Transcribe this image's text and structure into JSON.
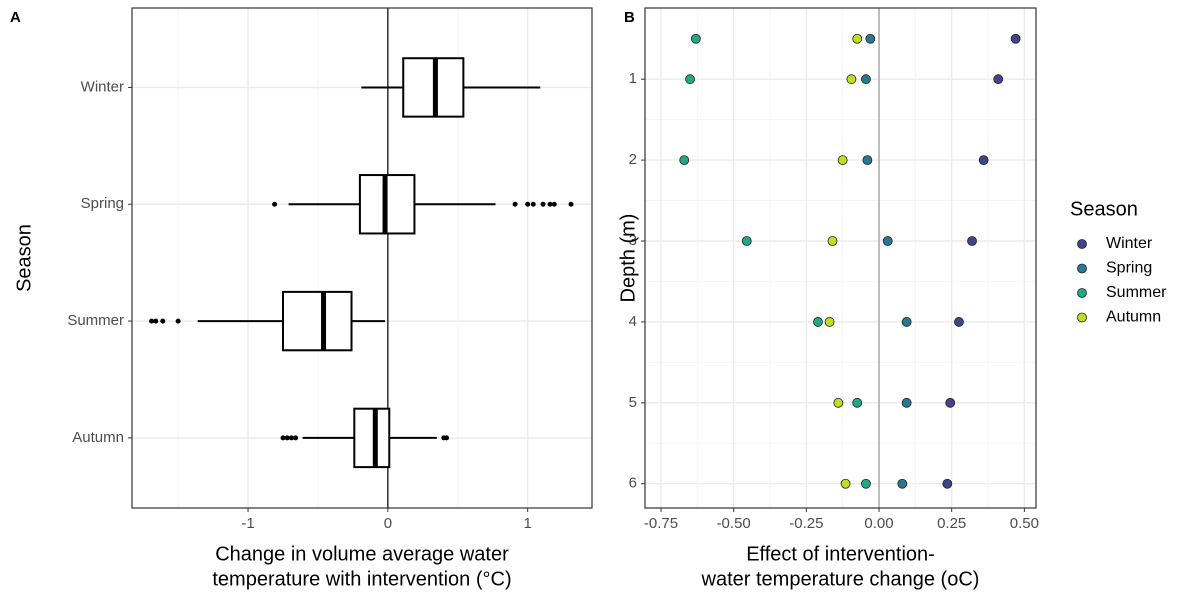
{
  "chart_data": [
    {
      "type": "boxplot",
      "panel_label": "A",
      "y_label": "Season",
      "x_label": [
        "Change in volume average water",
        "temperature with intervention (°C)"
      ],
      "categories": [
        "Winter",
        "Spring",
        "Summer",
        "Autumn"
      ],
      "boxes": [
        {
          "whislo": -0.19,
          "q1": 0.11,
          "med": 0.34,
          "q3": 0.54,
          "whishi": 1.09,
          "fliers": []
        },
        {
          "whislo": -0.71,
          "q1": -0.2,
          "med": -0.02,
          "q3": 0.19,
          "whishi": 0.77,
          "fliers": [
            -0.81,
            0.91,
            1.0,
            1.04,
            1.11,
            1.16,
            1.19,
            1.31
          ]
        },
        {
          "whislo": -1.36,
          "q1": -0.75,
          "med": -0.46,
          "q3": -0.26,
          "whishi": -0.02,
          "fliers": [
            -1.69,
            -1.66,
            -1.61,
            -1.5
          ]
        },
        {
          "whislo": -0.61,
          "q1": -0.24,
          "med": -0.09,
          "q3": 0.01,
          "whishi": 0.35,
          "fliers": [
            -0.75,
            -0.72,
            -0.69,
            -0.66,
            0.4,
            0.42
          ]
        }
      ],
      "color": "#000000",
      "xlim": [
        -1.83,
        1.46
      ],
      "xticks": [
        -1,
        0,
        1
      ],
      "minor_xticks": [
        -1.5,
        -0.5,
        0.5
      ],
      "vline": 0,
      "vline_color": "#000000",
      "grid": true
    },
    {
      "type": "scatter",
      "panel_label": "B",
      "y_label": "Depth (m)",
      "x_label": [
        "Effect of intervention-",
        "water temperature change (oC)"
      ],
      "legend_title": "Season",
      "legend": "right",
      "series": [
        {
          "name": "Winter",
          "color": "#414487",
          "x": [
            0.47,
            0.41,
            0.36,
            0.32,
            0.275,
            0.245,
            0.235
          ],
          "values": [
            0.5,
            1,
            2,
            3,
            4,
            5,
            6
          ]
        },
        {
          "name": "Spring",
          "color": "#2a788e",
          "x": [
            -0.03,
            -0.045,
            -0.04,
            0.03,
            0.095,
            0.095,
            0.08
          ],
          "values": [
            0.5,
            1,
            2,
            3,
            4,
            5,
            6
          ]
        },
        {
          "name": "Summer",
          "color": "#22a884",
          "x": [
            -0.63,
            -0.65,
            -0.67,
            -0.455,
            -0.21,
            -0.075,
            -0.045
          ],
          "values": [
            0.5,
            1,
            2,
            3,
            4,
            5,
            6
          ]
        },
        {
          "name": "Autumn",
          "color": "#bddf26",
          "x": [
            -0.075,
            -0.095,
            -0.125,
            -0.16,
            -0.17,
            -0.14,
            -0.115
          ],
          "values": [
            0.5,
            1,
            2,
            3,
            4,
            5,
            6
          ]
        }
      ],
      "xlim": [
        -0.805,
        0.54
      ],
      "xticks": [
        -0.75,
        {
          "value": -0.5,
          "label": "-0.50"
        },
        -0.25,
        {
          "value": 0,
          "label": "0.00"
        },
        0.25,
        {
          "value": 0.5,
          "label": "0.50"
        }
      ],
      "minor_xticks": [
        -0.625,
        -0.375,
        -0.125,
        0.125,
        0.375
      ],
      "ylim": [
        6.3,
        0.12
      ],
      "y_reversed": true,
      "yticks": [
        1,
        2,
        3,
        4,
        5,
        6
      ],
      "minor_yticks": [
        1.5,
        2.5,
        3.5,
        4.5,
        5.5
      ],
      "vline": 0,
      "vline_color": "#999999",
      "grid": true
    }
  ]
}
